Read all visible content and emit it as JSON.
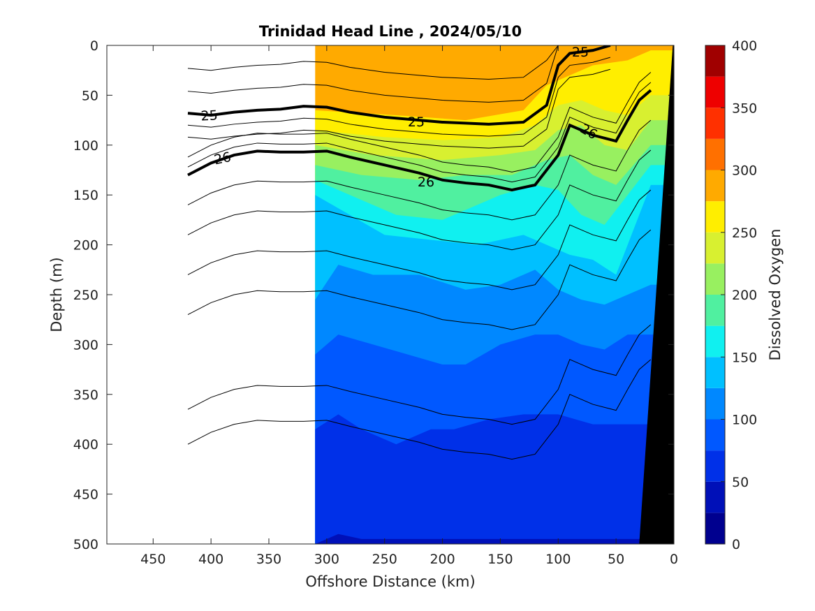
{
  "chart_data": {
    "type": "contour",
    "title": "Trinidad Head Line , 2024/05/10",
    "xlabel": "Offshore Distance (km)",
    "ylabel": "Depth (m)",
    "colorbar_label": "Dissolved Oxygen",
    "xlim": [
      490,
      0
    ],
    "ylim": [
      500,
      0
    ],
    "x_ticks": [
      450,
      400,
      350,
      300,
      250,
      200,
      150,
      100,
      50,
      0
    ],
    "y_ticks": [
      0,
      50,
      100,
      150,
      200,
      250,
      300,
      350,
      400,
      450,
      500
    ],
    "colorbar_range": [
      0,
      400
    ],
    "colorbar_ticks": [
      0,
      50,
      100,
      150,
      200,
      250,
      300,
      350,
      400
    ],
    "color_levels": [
      {
        "from": 0,
        "to": 25,
        "color": "#00008f"
      },
      {
        "from": 25,
        "to": 50,
        "color": "#0010b8"
      },
      {
        "from": 50,
        "to": 75,
        "color": "#0030e8"
      },
      {
        "from": 75,
        "to": 100,
        "color": "#0058ff"
      },
      {
        "from": 100,
        "to": 125,
        "color": "#0088ff"
      },
      {
        "from": 125,
        "to": 150,
        "color": "#00c0ff"
      },
      {
        "from": 150,
        "to": 175,
        "color": "#10f0f0"
      },
      {
        "from": 175,
        "to": 200,
        "color": "#50f0a0"
      },
      {
        "from": 200,
        "to": 225,
        "color": "#98f060"
      },
      {
        "from": 225,
        "to": 250,
        "color": "#d8f030"
      },
      {
        "from": 250,
        "to": 275,
        "color": "#ffee00"
      },
      {
        "from": 275,
        "to": 300,
        "color": "#ffaa00"
      },
      {
        "from": 300,
        "to": 325,
        "color": "#ff7000"
      },
      {
        "from": 325,
        "to": 350,
        "color": "#ff3000"
      },
      {
        "from": 350,
        "to": 375,
        "color": "#ee0000"
      },
      {
        "from": 375,
        "to": 400,
        "color": "#a00000"
      }
    ],
    "oxygen_region": {
      "x_range": [
        310,
        0
      ],
      "bands": [
        {
          "level": 275,
          "points": [
            [
              310,
              0
            ],
            [
              0,
              0
            ]
          ]
        },
        {
          "level": 250,
          "points": [
            [
              310,
              65
            ],
            [
              240,
              70
            ],
            [
              180,
              75
            ],
            [
              130,
              65
            ],
            [
              110,
              40
            ],
            [
              90,
              30
            ],
            [
              70,
              20
            ],
            [
              40,
              15
            ],
            [
              20,
              5
            ]
          ]
        },
        {
          "level": 225,
          "points": [
            [
              310,
              85
            ],
            [
              250,
              92
            ],
            [
              200,
              95
            ],
            [
              150,
              92
            ],
            [
              120,
              80
            ],
            [
              100,
              60
            ],
            [
              80,
              55
            ],
            [
              60,
              65
            ],
            [
              40,
              70
            ],
            [
              20,
              50
            ]
          ]
        },
        {
          "level": 200,
          "points": [
            [
              310,
              100
            ],
            [
              260,
              110
            ],
            [
              200,
              115
            ],
            [
              150,
              110
            ],
            [
              120,
              105
            ],
            [
              100,
              85
            ],
            [
              80,
              80
            ],
            [
              60,
              100
            ],
            [
              40,
              105
            ],
            [
              20,
              75
            ]
          ]
        },
        {
          "level": 175,
          "points": [
            [
              310,
              120
            ],
            [
              270,
              130
            ],
            [
              220,
              135
            ],
            [
              180,
              130
            ],
            [
              140,
              130
            ],
            [
              110,
              115
            ],
            [
              90,
              110
            ],
            [
              70,
              130
            ],
            [
              50,
              140
            ],
            [
              20,
              100
            ]
          ]
        },
        {
          "level": 150,
          "points": [
            [
              310,
              135
            ],
            [
              280,
              150
            ],
            [
              240,
              170
            ],
            [
              200,
              175
            ],
            [
              150,
              150
            ],
            [
              120,
              140
            ],
            [
              100,
              145
            ],
            [
              80,
              170
            ],
            [
              60,
              180
            ],
            [
              40,
              150
            ],
            [
              20,
              120
            ]
          ]
        },
        {
          "level": 125,
          "points": [
            [
              310,
              150
            ],
            [
              280,
              170
            ],
            [
              250,
              190
            ],
            [
              210,
              195
            ],
            [
              170,
              200
            ],
            [
              130,
              190
            ],
            [
              110,
              200
            ],
            [
              90,
              210
            ],
            [
              70,
              215
            ],
            [
              50,
              230
            ],
            [
              20,
              140
            ]
          ]
        },
        {
          "level": 100,
          "points": [
            [
              310,
              255
            ],
            [
              290,
              220
            ],
            [
              260,
              230
            ],
            [
              220,
              230
            ],
            [
              180,
              245
            ],
            [
              150,
              240
            ],
            [
              120,
              225
            ],
            [
              100,
              245
            ],
            [
              80,
              255
            ],
            [
              60,
              260
            ],
            [
              40,
              250
            ],
            [
              20,
              240
            ]
          ]
        },
        {
          "level": 75,
          "points": [
            [
              310,
              310
            ],
            [
              290,
              290
            ],
            [
              260,
              300
            ],
            [
              230,
              310
            ],
            [
              200,
              320
            ],
            [
              180,
              320
            ],
            [
              150,
              300
            ],
            [
              120,
              290
            ],
            [
              100,
              290
            ],
            [
              80,
              300
            ],
            [
              60,
              305
            ],
            [
              40,
              290
            ]
          ]
        },
        {
          "level": 50,
          "points": [
            [
              310,
              385
            ],
            [
              290,
              370
            ],
            [
              270,
              385
            ],
            [
              240,
              400
            ],
            [
              210,
              385
            ],
            [
              190,
              385
            ],
            [
              160,
              375
            ],
            [
              130,
              370
            ],
            [
              100,
              370
            ],
            [
              70,
              380
            ],
            [
              40,
              380
            ]
          ]
        },
        {
          "level": 25,
          "points": [
            [
              310,
              500
            ],
            [
              290,
              490
            ],
            [
              270,
              495
            ],
            [
              0,
              495
            ]
          ]
        }
      ]
    },
    "density_contours": [
      {
        "label": "25",
        "bold": true,
        "points": [
          [
            420,
            68
          ],
          [
            400,
            70
          ],
          [
            380,
            67
          ],
          [
            360,
            65
          ],
          [
            340,
            64
          ],
          [
            320,
            61
          ],
          [
            300,
            62
          ],
          [
            280,
            67
          ],
          [
            250,
            72
          ],
          [
            220,
            75
          ],
          [
            200,
            77
          ],
          [
            180,
            78
          ],
          [
            160,
            79
          ],
          [
            130,
            77
          ],
          [
            110,
            60
          ],
          [
            100,
            20
          ],
          [
            90,
            8
          ],
          [
            70,
            5
          ],
          [
            55,
            0
          ]
        ]
      },
      {
        "label": "26",
        "bold": true,
        "points": [
          [
            420,
            130
          ],
          [
            400,
            118
          ],
          [
            380,
            110
          ],
          [
            360,
            106
          ],
          [
            340,
            107
          ],
          [
            320,
            107
          ],
          [
            300,
            106
          ],
          [
            280,
            112
          ],
          [
            250,
            120
          ],
          [
            220,
            128
          ],
          [
            200,
            135
          ],
          [
            180,
            138
          ],
          [
            160,
            140
          ],
          [
            140,
            145
          ],
          [
            120,
            140
          ],
          [
            100,
            110
          ],
          [
            90,
            80
          ],
          [
            80,
            85
          ],
          [
            70,
            90
          ],
          [
            50,
            96
          ],
          [
            40,
            75
          ],
          [
            30,
            55
          ],
          [
            20,
            45
          ]
        ]
      }
    ],
    "annotations": [
      "25",
      "25",
      "25",
      "26",
      "26",
      "26"
    ]
  }
}
